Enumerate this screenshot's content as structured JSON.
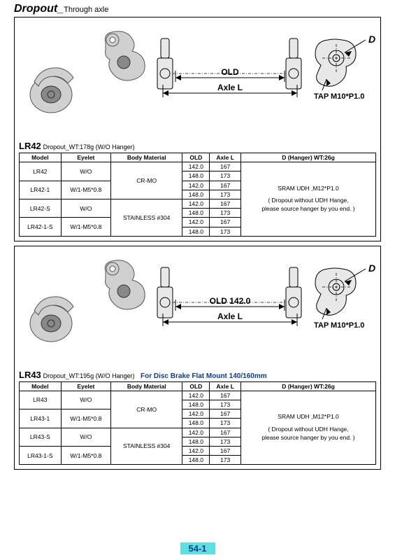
{
  "header": {
    "main": "Dropout_",
    "sub": "Through axle"
  },
  "pageNumber": "54-1",
  "tableHeaders": [
    "Model",
    "Eyelet",
    "Body Material",
    "OLD",
    "Axle L",
    "D (Hanger) WT:26g"
  ],
  "dNote": {
    "line1": "SRAM UDH ,M12*P1.0",
    "line2": "( Dropout without UDH Hange,",
    "line3": "please source hanger by you end. )"
  },
  "sections": [
    {
      "code": "LR42",
      "subtitle": "Dropout_WT:178g (W/O Hanger)",
      "extra": "",
      "oldLabel": "OLD",
      "rows": [
        {
          "model": "LR42",
          "eyelet": "W/O",
          "material": "CR-MO",
          "span": 2,
          "dims": [
            [
              "142.0",
              "167"
            ],
            [
              "148.0",
              "173"
            ]
          ]
        },
        {
          "model": "LR42-1",
          "eyelet": "W/1-M5*0.8",
          "material": "",
          "span": 0,
          "dims": [
            [
              "142.0",
              "167"
            ],
            [
              "148.0",
              "173"
            ]
          ]
        },
        {
          "model": "LR42-S",
          "eyelet": "W/O",
          "material": "STAINLESS #304",
          "span": 2,
          "dims": [
            [
              "142.0",
              "167"
            ],
            [
              "148.0",
              "173"
            ]
          ]
        },
        {
          "model": "LR42-1-S",
          "eyelet": "W/1-M5*0.8",
          "material": "",
          "span": 0,
          "dims": [
            [
              "142.0",
              "167"
            ],
            [
              "148.0",
              "173"
            ]
          ]
        }
      ]
    },
    {
      "code": "LR43",
      "subtitle": "Dropout_WT:195g (W/O Hanger)",
      "extra": "For Disc Brake Flat Mount 140/160mm",
      "oldLabel": "OLD 142.0",
      "rows": [
        {
          "model": "LR43",
          "eyelet": "W/O",
          "material": "CR-MO",
          "span": 2,
          "dims": [
            [
              "142.0",
              "167"
            ],
            [
              "148.0",
              "173"
            ]
          ]
        },
        {
          "model": "LR43-1",
          "eyelet": "W/1-M5*0.8",
          "material": "",
          "span": 0,
          "dims": [
            [
              "142.0",
              "167"
            ],
            [
              "148.0",
              "173"
            ]
          ]
        },
        {
          "model": "LR43-S",
          "eyelet": "W/O",
          "material": "STAINLESS #304",
          "span": 2,
          "dims": [
            [
              "142.0",
              "167"
            ],
            [
              "148.0",
              "173"
            ]
          ]
        },
        {
          "model": "LR43-1-S",
          "eyelet": "W/1-M5*0.8",
          "material": "",
          "span": 0,
          "dims": [
            [
              "142.0",
              "167"
            ],
            [
              "148.0",
              "173"
            ]
          ]
        }
      ]
    }
  ],
  "schematic": {
    "axleLabel": "Axle L",
    "tapLabel": "TAP M10*P1.0",
    "dLabel": "D"
  }
}
